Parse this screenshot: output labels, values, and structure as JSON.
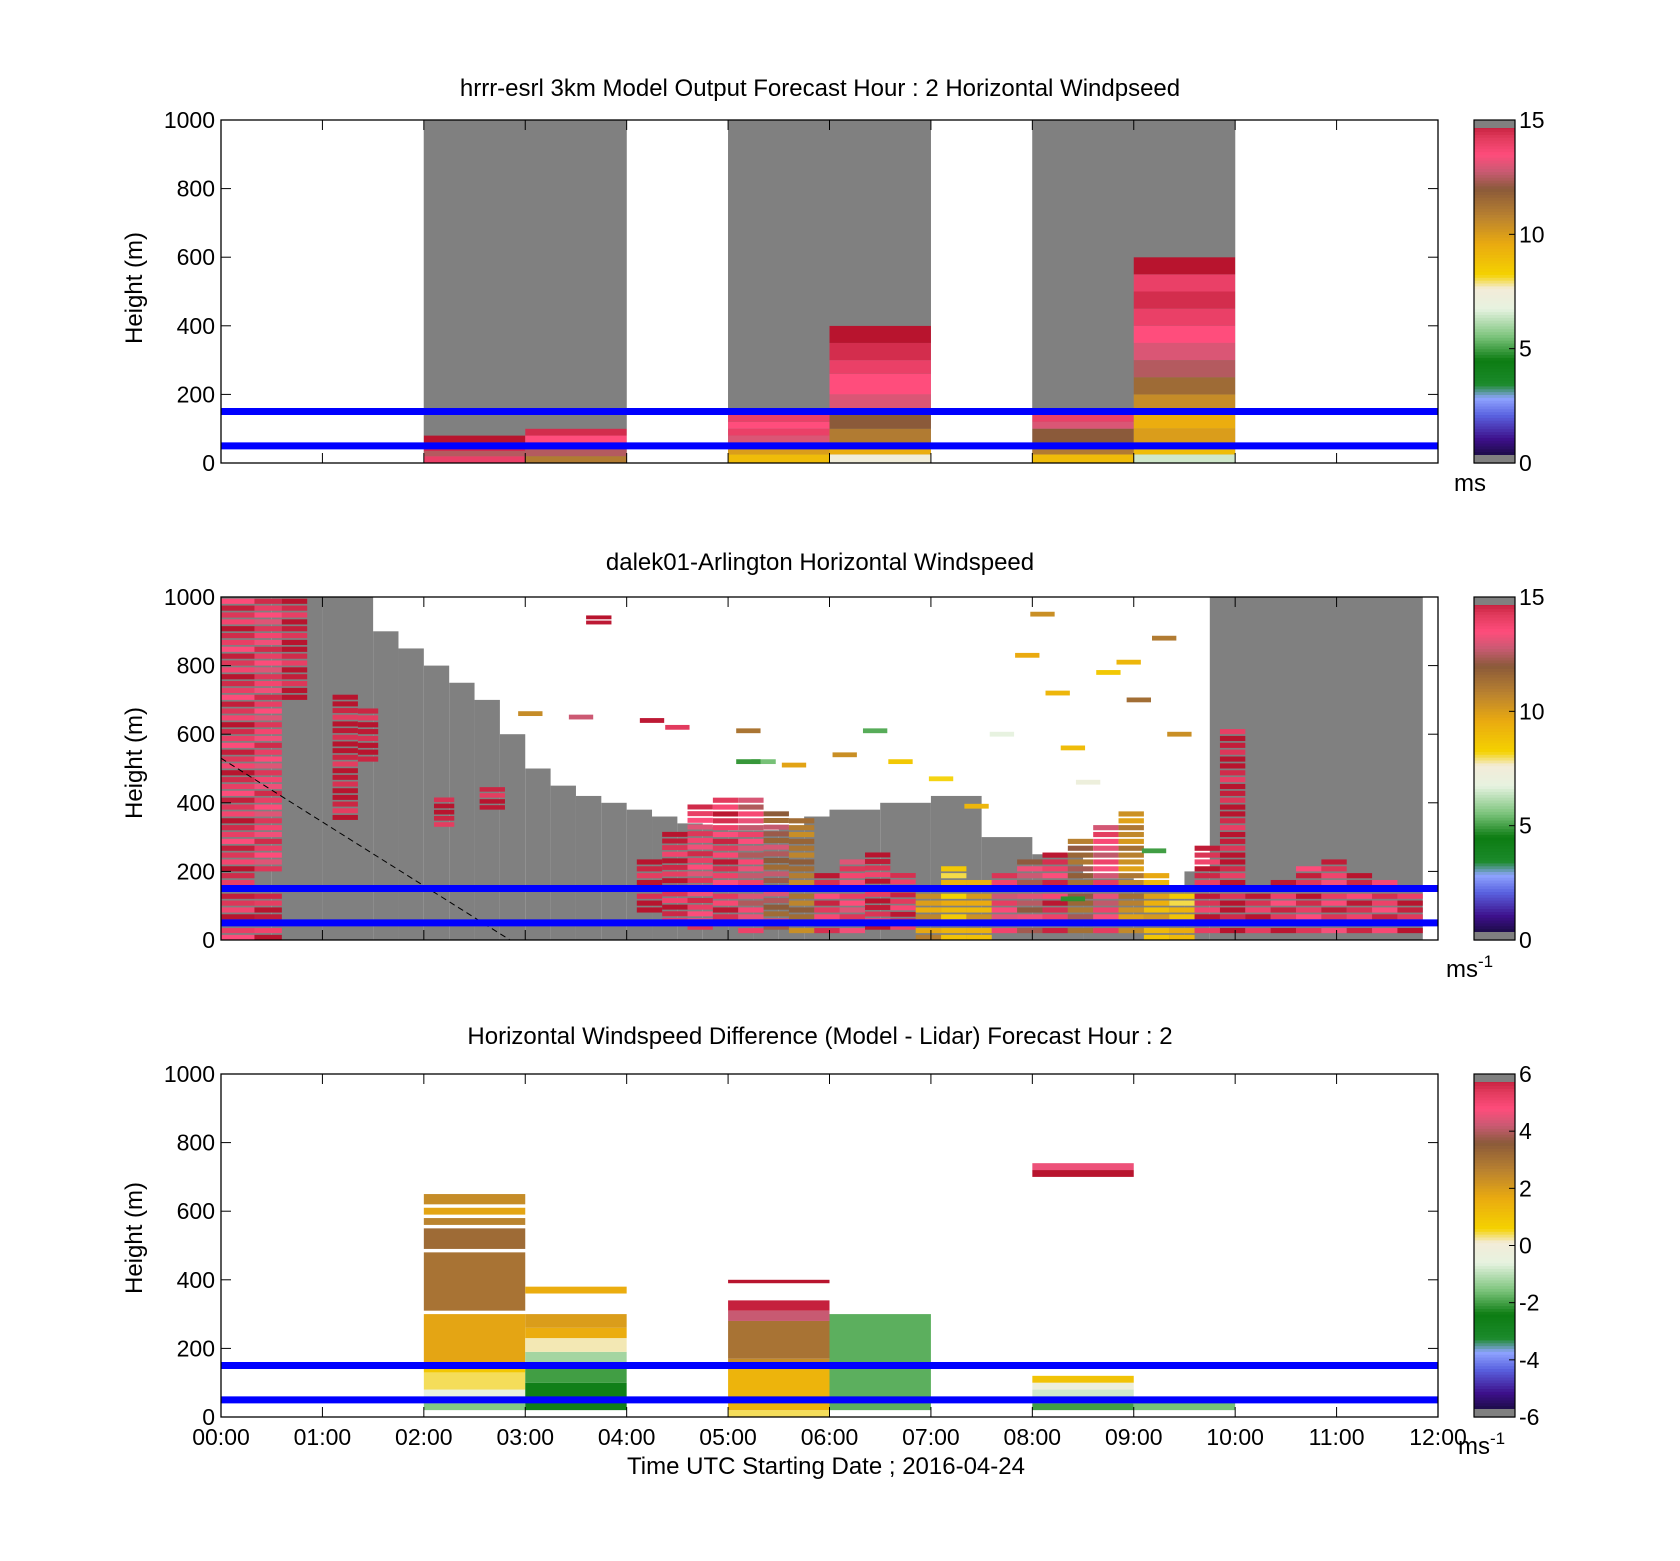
{
  "figure": {
    "xlabel": "Time UTC  Starting Date ; 2016-04-24",
    "xticks": [
      "00:00",
      "01:00",
      "02:00",
      "03:00",
      "04:00",
      "05:00",
      "06:00",
      "07:00",
      "08:00",
      "09:00",
      "10:00",
      "11:00",
      "12:00"
    ]
  },
  "colors": {
    "ref_line": "#0000ff",
    "no_data": "#808080",
    "frame": "#000000"
  },
  "chart_data": [
    {
      "type": "heatmap",
      "title": "hrrr-esrl 3km Model Output   Forecast Hour : 2 Horizontal Windpseed",
      "xlabel": "",
      "ylabel": "Height (m)",
      "xlim": [
        0,
        12
      ],
      "ylim": [
        0,
        1000
      ],
      "yticks": [
        "0",
        "200",
        "400",
        "600",
        "800",
        "1000"
      ],
      "reference_lines_m": [
        50,
        150
      ],
      "colorbar": {
        "ticks": [
          "0",
          "5",
          "10",
          "15"
        ],
        "range": [
          0,
          15
        ],
        "unit": "ms"
      },
      "gray_columns_h": [
        [
          2,
          4
        ],
        [
          5,
          7
        ],
        [
          8,
          10
        ]
      ],
      "cells": [
        {
          "t0": 2,
          "t1": 3,
          "bands": [
            [
              0,
              20,
              14
            ],
            [
              20,
              35,
              12.5
            ],
            [
              35,
              60,
              14.5
            ],
            [
              60,
              80,
              15
            ],
            [
              80,
              1000,
              "nd"
            ]
          ]
        },
        {
          "t0": 3,
          "t1": 4,
          "bands": [
            [
              0,
              20,
              11
            ],
            [
              20,
              45,
              12.5
            ],
            [
              45,
              80,
              13.5
            ],
            [
              80,
              100,
              14.5
            ],
            [
              100,
              1000,
              "nd"
            ]
          ]
        },
        {
          "t0": 5,
          "t1": 6,
          "bands": [
            [
              0,
              25,
              9
            ],
            [
              25,
              45,
              10
            ],
            [
              45,
              60,
              11
            ],
            [
              60,
              80,
              13
            ],
            [
              80,
              100,
              14
            ],
            [
              100,
              120,
              13.5
            ],
            [
              120,
              150,
              14
            ],
            [
              150,
              1000,
              "nd"
            ]
          ]
        },
        {
          "t0": 6,
          "t1": 7,
          "bands": [
            [
              0,
              25,
              7.5
            ],
            [
              25,
              60,
              9.5
            ],
            [
              60,
              100,
              11
            ],
            [
              100,
              150,
              12
            ],
            [
              150,
              200,
              13
            ],
            [
              200,
              260,
              13.5
            ],
            [
              260,
              300,
              14
            ],
            [
              300,
              350,
              14.5
            ],
            [
              350,
              400,
              15
            ],
            [
              400,
              1000,
              "nd"
            ]
          ]
        },
        {
          "t0": 8,
          "t1": 9,
          "bands": [
            [
              0,
              25,
              9
            ],
            [
              25,
              60,
              11
            ],
            [
              60,
              100,
              12
            ],
            [
              100,
              120,
              13
            ],
            [
              120,
              150,
              14
            ],
            [
              150,
              1000,
              "nd"
            ]
          ]
        },
        {
          "t0": 9,
          "t1": 10,
          "bands": [
            [
              0,
              25,
              6.5
            ],
            [
              25,
              60,
              9
            ],
            [
              60,
              100,
              10
            ],
            [
              100,
              150,
              9.5
            ],
            [
              150,
              200,
              10.5
            ],
            [
              200,
              250,
              11.5
            ],
            [
              250,
              300,
              12.5
            ],
            [
              300,
              350,
              13
            ],
            [
              350,
              400,
              13.5
            ],
            [
              400,
              450,
              14
            ],
            [
              450,
              500,
              14.5
            ],
            [
              500,
              550,
              14
            ],
            [
              550,
              600,
              15
            ],
            [
              600,
              1000,
              "nd"
            ]
          ]
        }
      ]
    },
    {
      "type": "heatmap",
      "title": "dalek01-Arlington  Horizontal Windspeed",
      "xlabel": "",
      "ylabel": "Height (m)",
      "xlim": [
        0,
        12
      ],
      "ylim": [
        0,
        1000
      ],
      "yticks": [
        "0",
        "200",
        "400",
        "600",
        "800",
        "1000"
      ],
      "reference_lines_m": [
        50,
        150
      ],
      "colorbar": {
        "ticks": [
          "0",
          "5",
          "10",
          "15"
        ],
        "range": [
          0,
          15
        ],
        "unit": "ms",
        "unit_sup": "-1"
      },
      "dashed_line": [
        [
          0,
          530
        ],
        [
          2.85,
          0
        ]
      ],
      "gray_profile": [
        [
          0,
          1000
        ],
        [
          0.5,
          1000
        ],
        [
          1,
          1000
        ],
        [
          1.5,
          900
        ],
        [
          1.75,
          850
        ],
        [
          2,
          800
        ],
        [
          2.25,
          750
        ],
        [
          2.5,
          700
        ],
        [
          2.75,
          600
        ],
        [
          3,
          500
        ],
        [
          3.25,
          450
        ],
        [
          3.5,
          420
        ],
        [
          3.75,
          400
        ],
        [
          4,
          380
        ],
        [
          4.25,
          360
        ],
        [
          4.5,
          340
        ],
        [
          4.75,
          330
        ],
        [
          5,
          320
        ],
        [
          5.25,
          320
        ],
        [
          5.5,
          330
        ],
        [
          5.75,
          360
        ],
        [
          6,
          380
        ],
        [
          6.5,
          400
        ],
        [
          7,
          420
        ],
        [
          7.5,
          300
        ],
        [
          8,
          250
        ],
        [
          8.5,
          180
        ],
        [
          9,
          150
        ],
        [
          9.5,
          200
        ],
        [
          9.75,
          1000
        ],
        [
          11.85,
          1000
        ]
      ],
      "rows": [
        {
          "t0": 0,
          "t1": 0.33,
          "h0": 0,
          "h1": 1000,
          "v": 14.3
        },
        {
          "t0": 0.33,
          "t1": 0.6,
          "h0": 200,
          "h1": 1000,
          "v": 13.8
        },
        {
          "t0": 0.33,
          "t1": 0.6,
          "h0": 0,
          "h1": 140,
          "v": 14.6
        },
        {
          "t0": 0.6,
          "t1": 0.85,
          "h0": 700,
          "h1": 1000,
          "v": 14.8
        },
        {
          "t0": 1.1,
          "t1": 1.35,
          "h0": 350,
          "h1": 720,
          "v": 14.9
        },
        {
          "t0": 1.35,
          "t1": 1.55,
          "h0": 520,
          "h1": 680,
          "v": 14.9
        },
        {
          "t0": 2.1,
          "t1": 2.3,
          "h0": 330,
          "h1": 420,
          "v": 14.9
        },
        {
          "t0": 2.55,
          "t1": 2.8,
          "h0": 380,
          "h1": 450,
          "v": 14.9
        },
        {
          "t0": 3.6,
          "t1": 3.85,
          "h0": 920,
          "h1": 950,
          "v": 14.9
        },
        {
          "t0": 4.1,
          "t1": 4.35,
          "h0": 80,
          "h1": 240,
          "v": 14.9
        },
        {
          "t0": 4.35,
          "t1": 4.6,
          "h0": 50,
          "h1": 320,
          "v": 14.6
        },
        {
          "t0": 4.6,
          "t1": 4.85,
          "h0": 30,
          "h1": 400,
          "v": 13.8
        },
        {
          "t0": 4.85,
          "t1": 5.1,
          "h0": 40,
          "h1": 420,
          "v": 14.2
        },
        {
          "t0": 5.1,
          "t1": 5.35,
          "h0": 20,
          "h1": 420,
          "v": 13.2
        },
        {
          "t0": 5.35,
          "t1": 5.6,
          "h0": 30,
          "h1": 380,
          "v": 12.2
        },
        {
          "t0": 5.6,
          "t1": 5.85,
          "h0": 20,
          "h1": 360,
          "v": 11.2
        },
        {
          "t0": 5.85,
          "t1": 6.1,
          "h0": 20,
          "h1": 200,
          "v": 14.2
        },
        {
          "t0": 6.1,
          "t1": 6.35,
          "h0": 20,
          "h1": 240,
          "v": 13.8
        },
        {
          "t0": 6.35,
          "t1": 6.6,
          "h0": 30,
          "h1": 260,
          "v": 14.6
        },
        {
          "t0": 6.6,
          "t1": 6.85,
          "h0": 30,
          "h1": 200,
          "v": 14.2
        },
        {
          "t0": 6.85,
          "t1": 7.1,
          "h0": 0,
          "h1": 160,
          "v": 10.2
        },
        {
          "t0": 7.1,
          "t1": 7.35,
          "h0": 0,
          "h1": 220,
          "v": 8.8
        },
        {
          "t0": 7.35,
          "t1": 7.6,
          "h0": 0,
          "h1": 180,
          "v": 9.6
        },
        {
          "t0": 7.6,
          "t1": 7.85,
          "h0": 20,
          "h1": 200,
          "v": 13.6
        },
        {
          "t0": 7.85,
          "t1": 8.1,
          "h0": 20,
          "h1": 240,
          "v": 12.8
        },
        {
          "t0": 8.1,
          "t1": 8.35,
          "h0": 20,
          "h1": 260,
          "v": 14.2
        },
        {
          "t0": 8.35,
          "t1": 8.6,
          "h0": 20,
          "h1": 300,
          "v": 11.6
        },
        {
          "t0": 8.6,
          "t1": 8.85,
          "h0": 20,
          "h1": 340,
          "v": 13.4
        },
        {
          "t0": 8.85,
          "t1": 9.1,
          "h0": 20,
          "h1": 380,
          "v": 10.6
        },
        {
          "t0": 9.1,
          "t1": 9.35,
          "h0": 0,
          "h1": 200,
          "v": 9.4
        },
        {
          "t0": 9.35,
          "t1": 9.6,
          "h0": 0,
          "h1": 160,
          "v": 8.8
        },
        {
          "t0": 9.6,
          "t1": 9.85,
          "h0": 20,
          "h1": 280,
          "v": 14.6
        },
        {
          "t0": 9.85,
          "t1": 10.1,
          "h0": 20,
          "h1": 620,
          "v": 14.8
        },
        {
          "t0": 10.1,
          "t1": 10.35,
          "h0": 20,
          "h1": 160,
          "v": 14.4
        },
        {
          "t0": 10.35,
          "t1": 10.6,
          "h0": 20,
          "h1": 180,
          "v": 14.2
        },
        {
          "t0": 10.6,
          "t1": 10.85,
          "h0": 20,
          "h1": 220,
          "v": 14.3
        },
        {
          "t0": 10.85,
          "t1": 11.1,
          "h0": 20,
          "h1": 240,
          "v": 14.1
        },
        {
          "t0": 11.1,
          "t1": 11.35,
          "h0": 20,
          "h1": 200,
          "v": 14.4
        },
        {
          "t0": 11.35,
          "t1": 11.6,
          "h0": 20,
          "h1": 180,
          "v": 14.2
        },
        {
          "t0": 11.6,
          "t1": 11.85,
          "h0": 20,
          "h1": 140,
          "v": 14.5
        }
      ],
      "scatter_cells": [
        {
          "t": 3.05,
          "h": 660,
          "v": 10.5
        },
        {
          "t": 3.55,
          "h": 650,
          "v": 12.8
        },
        {
          "t": 4.25,
          "h": 640,
          "v": 14.9
        },
        {
          "t": 4.5,
          "h": 620,
          "v": 14.2
        },
        {
          "t": 5.2,
          "h": 610,
          "v": 11.2
        },
        {
          "t": 5.35,
          "h": 520,
          "v": 5.5
        },
        {
          "t": 5.65,
          "h": 510,
          "v": 9.8
        },
        {
          "t": 6.15,
          "h": 540,
          "v": 10.4
        },
        {
          "t": 6.45,
          "h": 610,
          "v": 5.2
        },
        {
          "t": 6.7,
          "h": 520,
          "v": 8.6
        },
        {
          "t": 7.1,
          "h": 470,
          "v": 8.2
        },
        {
          "t": 7.45,
          "h": 390,
          "v": 9.2
        },
        {
          "t": 7.7,
          "h": 600,
          "v": 6.8
        },
        {
          "t": 7.95,
          "h": 830,
          "v": 9.6
        },
        {
          "t": 8.1,
          "h": 950,
          "v": 10.4
        },
        {
          "t": 8.25,
          "h": 720,
          "v": 9.2
        },
        {
          "t": 8.4,
          "h": 560,
          "v": 9.0
        },
        {
          "t": 8.55,
          "h": 460,
          "v": 7.2
        },
        {
          "t": 8.75,
          "h": 780,
          "v": 8.6
        },
        {
          "t": 8.95,
          "h": 810,
          "v": 9.2
        },
        {
          "t": 9.05,
          "h": 700,
          "v": 11.4
        },
        {
          "t": 9.3,
          "h": 880,
          "v": 11.0
        },
        {
          "t": 9.45,
          "h": 600,
          "v": 10.4
        },
        {
          "t": 9.2,
          "h": 260,
          "v": 5.0
        },
        {
          "t": 8.4,
          "h": 120,
          "v": 4.8
        },
        {
          "t": 5.2,
          "h": 520,
          "v": 4.9
        }
      ]
    },
    {
      "type": "heatmap",
      "title": "Horizontal Windspeed Difference (Model - Lidar) Forecast Hour : 2",
      "xlabel": "Time UTC  Starting Date ; 2016-04-24",
      "ylabel": "Height (m)",
      "xlim": [
        0,
        12
      ],
      "ylim": [
        0,
        1000
      ],
      "yticks": [
        "0",
        "200",
        "400",
        "600",
        "800",
        "1000"
      ],
      "reference_lines_m": [
        50,
        150
      ],
      "colorbar": {
        "ticks": [
          "-6",
          "-4",
          "-2",
          "0",
          "2",
          "4",
          "6"
        ],
        "range": [
          -6,
          6
        ],
        "unit": "ms",
        "unit_sup": "-1"
      },
      "cells": [
        {
          "t0": 2,
          "t1": 3,
          "bands": [
            [
              20,
              40,
              -1.5
            ],
            [
              40,
              80,
              -0.5
            ],
            [
              80,
              130,
              0.4
            ],
            [
              130,
              160,
              0.9
            ],
            [
              160,
              300,
              1.8
            ],
            [
              310,
              480,
              3.0
            ],
            [
              490,
              550,
              3.2
            ],
            [
              560,
              580,
              2.6
            ],
            [
              590,
              610,
              1.8
            ],
            [
              620,
              650,
              2.4
            ]
          ]
        },
        {
          "t0": 3,
          "t1": 4,
          "bands": [
            [
              20,
              100,
              -2.6
            ],
            [
              100,
              150,
              -2.0
            ],
            [
              150,
              190,
              -1.2
            ],
            [
              190,
              230,
              0.2
            ],
            [
              230,
              260,
              1.6
            ],
            [
              260,
              300,
              2.0
            ],
            [
              360,
              380,
              1.6
            ]
          ]
        },
        {
          "t0": 5,
          "t1": 6,
          "bands": [
            [
              0,
              20,
              0.4
            ],
            [
              20,
              150,
              1.4
            ],
            [
              150,
              170,
              2.4
            ],
            [
              170,
              280,
              3.0
            ],
            [
              280,
              310,
              4.2
            ],
            [
              310,
              340,
              5.8
            ],
            [
              390,
              400,
              6.0
            ]
          ]
        },
        {
          "t0": 6,
          "t1": 7,
          "bands": [
            [
              20,
              300,
              -1.8
            ]
          ]
        },
        {
          "t0": 8,
          "t1": 9,
          "bands": [
            [
              20,
              40,
              -2.0
            ],
            [
              40,
              80,
              -0.8
            ],
            [
              80,
              100,
              -0.2
            ],
            [
              100,
              120,
              1.0
            ],
            [
              140,
              150,
              2.6
            ],
            [
              700,
              720,
              6.0
            ],
            [
              720,
              740,
              4.6
            ]
          ]
        },
        {
          "t0": 9,
          "t1": 10,
          "bands": [
            [
              20,
              50,
              -1.6
            ]
          ]
        }
      ]
    }
  ]
}
